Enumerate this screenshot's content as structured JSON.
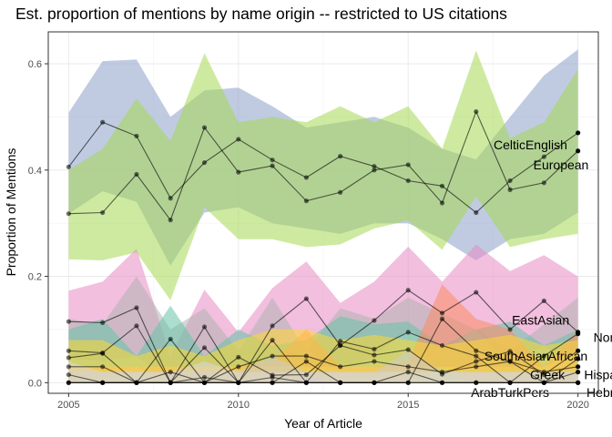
{
  "chart_data": {
    "type": "line",
    "title": "Est. proportion of mentions by name origin -- restricted to US citations",
    "xlabel": "Year of Article",
    "ylabel": "Proportion of Mentions",
    "xlim": [
      2004.4,
      2020.6
    ],
    "ylim": [
      -0.02,
      0.66
    ],
    "x_ticks": [
      2005,
      2010,
      2015,
      2020
    ],
    "y_ticks": [
      0.0,
      0.2,
      0.4,
      0.6
    ],
    "y_tick_labels": [
      "0.0",
      "0.2",
      "0.4",
      "0.6"
    ],
    "grid": true,
    "legend": "none (series labeled directly at right end)",
    "x": [
      2005,
      2006,
      2007,
      2008,
      2009,
      2010,
      2011,
      2012,
      2013,
      2014,
      2015,
      2016,
      2017,
      2018,
      2019,
      2020
    ],
    "series": [
      {
        "name": "CelticEnglish",
        "color": "#7570b3",
        "band_color": "#8da0cb",
        "values": [
          0.406,
          0.49,
          0.464,
          0.347,
          0.414,
          0.458,
          0.419,
          0.386,
          0.426,
          0.407,
          0.38,
          0.37,
          0.32,
          0.38,
          0.425,
          0.47
        ],
        "lower": [
          0.318,
          0.36,
          0.34,
          0.22,
          0.32,
          0.33,
          0.3,
          0.29,
          0.28,
          0.3,
          0.3,
          0.27,
          0.23,
          0.27,
          0.28,
          0.32
        ],
        "upper": [
          0.508,
          0.605,
          0.608,
          0.5,
          0.55,
          0.555,
          0.52,
          0.48,
          0.49,
          0.5,
          0.48,
          0.44,
          0.42,
          0.5,
          0.578,
          0.627
        ],
        "label_x": 2018.6,
        "label_y": 0.448
      },
      {
        "name": "European",
        "color": "#4d8b2a",
        "band_color": "#a6d854",
        "values": [
          0.318,
          0.32,
          0.392,
          0.306,
          0.48,
          0.396,
          0.408,
          0.342,
          0.358,
          0.4,
          0.41,
          0.338,
          0.51,
          0.363,
          0.376,
          0.436
        ],
        "lower": [
          0.232,
          0.23,
          0.245,
          0.155,
          0.33,
          0.27,
          0.27,
          0.255,
          0.26,
          0.29,
          0.305,
          0.25,
          0.35,
          0.255,
          0.27,
          0.28
        ],
        "upper": [
          0.4,
          0.44,
          0.535,
          0.455,
          0.62,
          0.49,
          0.5,
          0.49,
          0.52,
          0.49,
          0.52,
          0.44,
          0.625,
          0.46,
          0.49,
          0.59
        ],
        "label_x": 2019.5,
        "label_y": 0.41
      },
      {
        "name": "EastAsian",
        "color": "#8b3a7a",
        "band_color": "#e78ac3",
        "values": [
          0.115,
          0.113,
          0.141,
          0.0,
          0.105,
          0.0,
          0.107,
          0.158,
          0.07,
          0.117,
          0.174,
          0.131,
          0.17,
          0.1,
          0.154,
          0.095
        ],
        "lower": [
          0.045,
          0.04,
          0.05,
          0.0,
          0.02,
          0.0,
          0.03,
          0.06,
          0.02,
          0.05,
          0.1,
          0.06,
          0.1,
          0.03,
          0.07,
          0.02
        ],
        "upper": [
          0.173,
          0.19,
          0.252,
          0.05,
          0.175,
          0.095,
          0.178,
          0.228,
          0.15,
          0.19,
          0.256,
          0.19,
          0.26,
          0.21,
          0.24,
          0.2
        ],
        "label_x": 2018.9,
        "label_y": 0.118
      },
      {
        "name": "Nordic",
        "color": "#333333",
        "band_color": "#b3b3b3",
        "values": [
          0.06,
          0.056,
          0.107,
          0.0,
          0.066,
          0.0,
          0.08,
          0.0,
          0.078,
          0.063,
          0.095,
          0.07,
          0.05,
          0.0,
          0.05,
          0.092
        ],
        "lower": [
          0.01,
          0.01,
          0.03,
          0.0,
          0.0,
          0.0,
          0.02,
          0.0,
          0.02,
          0.01,
          0.04,
          0.01,
          0.0,
          0.0,
          0.0,
          0.02
        ],
        "upper": [
          0.12,
          0.11,
          0.2,
          0.1,
          0.14,
          0.06,
          0.16,
          0.06,
          0.14,
          0.12,
          0.16,
          0.13,
          0.1,
          0.06,
          0.11,
          0.16
        ],
        "label_x": 2021.0,
        "label_y": 0.085
      },
      {
        "name": "SouthAsian",
        "color": "#1b7a5e",
        "band_color": "#66c2a5",
        "values": [
          0.047,
          0.055,
          0.0,
          0.082,
          0.0,
          0.048,
          0.014,
          0.015,
          0.07,
          0.052,
          0.062,
          0.016,
          0.04,
          0.059,
          0.015,
          0.06
        ],
        "lower": [
          0.0,
          0.01,
          0.0,
          0.02,
          0.0,
          0.0,
          0.0,
          0.0,
          0.01,
          0.01,
          0.01,
          0.0,
          0.0,
          0.01,
          0.0,
          0.01
        ],
        "upper": [
          0.1,
          0.12,
          0.05,
          0.145,
          0.05,
          0.1,
          0.07,
          0.08,
          0.125,
          0.11,
          0.115,
          0.07,
          0.1,
          0.115,
          0.07,
          0.1
        ],
        "label_x": 2018.2,
        "label_y": 0.05
      },
      {
        "name": "African",
        "color": "#c75c2a",
        "band_color": "#fc8d62",
        "values": [
          0.0,
          0.0,
          0.0,
          0.0,
          0.0,
          0.0,
          0.0,
          0.04,
          0.0,
          0.0,
          0.0,
          0.12,
          0.06,
          0.04,
          0.0,
          0.045
        ],
        "lower": [
          0.0,
          0.0,
          0.0,
          0.0,
          0.0,
          0.0,
          0.0,
          0.0,
          0.0,
          0.0,
          0.0,
          0.03,
          0.0,
          0.0,
          0.0,
          0.0
        ],
        "upper": [
          0.03,
          0.03,
          0.03,
          0.03,
          0.03,
          0.03,
          0.04,
          0.1,
          0.03,
          0.03,
          0.04,
          0.185,
          0.12,
          0.1,
          0.03,
          0.1
        ],
        "label_x": 2019.7,
        "label_y": 0.05
      },
      {
        "name": "Greek",
        "color": "#8a6d1e",
        "band_color": "#e5c494",
        "values": [
          0.0,
          0.0,
          0.0,
          0.0,
          0.0,
          0.0,
          0.0,
          0.0,
          0.0,
          0.0,
          0.0,
          0.0,
          0.0,
          0.0,
          0.0,
          0.02
        ],
        "lower": [
          0.0,
          0.0,
          0.0,
          0.0,
          0.0,
          0.0,
          0.0,
          0.0,
          0.0,
          0.0,
          0.0,
          0.0,
          0.0,
          0.0,
          0.0,
          0.0
        ],
        "upper": [
          0.03,
          0.03,
          0.03,
          0.03,
          0.03,
          0.03,
          0.03,
          0.03,
          0.03,
          0.03,
          0.03,
          0.03,
          0.03,
          0.03,
          0.03,
          0.06
        ],
        "label_x": 2019.1,
        "label_y": 0.015
      },
      {
        "name": "Hispanic",
        "color": "#6a6a00",
        "band_color": "#ffd92f",
        "values": [
          0.03,
          0.03,
          0.0,
          0.02,
          0.0,
          0.03,
          0.05,
          0.05,
          0.03,
          0.04,
          0.03,
          0.02,
          0.03,
          0.04,
          0.02,
          0.03
        ],
        "lower": [
          0.0,
          0.0,
          0.0,
          0.0,
          0.0,
          0.0,
          0.0,
          0.01,
          0.0,
          0.0,
          0.0,
          0.0,
          0.0,
          0.0,
          0.0,
          0.0
        ],
        "upper": [
          0.08,
          0.08,
          0.05,
          0.07,
          0.05,
          0.08,
          0.1,
          0.1,
          0.08,
          0.09,
          0.08,
          0.07,
          0.08,
          0.09,
          0.07,
          0.08
        ],
        "label_x": 2020.9,
        "label_y": 0.015
      },
      {
        "name": "ArabTurkPers",
        "color": "#555555",
        "band_color": "#cccccc",
        "values": [
          0.0,
          0.0,
          0.0,
          0.0,
          0.0,
          0.0,
          0.01,
          0.0,
          0.0,
          0.0,
          0.02,
          0.0,
          0.0,
          0.0,
          0.0,
          0.0
        ],
        "lower": [
          0.0,
          0.0,
          0.0,
          0.0,
          0.0,
          0.0,
          0.0,
          0.0,
          0.0,
          0.0,
          0.0,
          0.0,
          0.0,
          0.0,
          0.0,
          0.0
        ],
        "upper": [
          0.02,
          0.02,
          0.02,
          0.02,
          0.02,
          0.02,
          0.05,
          0.02,
          0.02,
          0.02,
          0.06,
          0.02,
          0.02,
          0.02,
          0.02,
          0.02
        ],
        "label_x": 2018.0,
        "label_y": -0.018
      },
      {
        "name": "Hebrew",
        "color": "#444444",
        "band_color": "#d9d9d9",
        "values": [
          0.015,
          0.0,
          0.0,
          0.0,
          0.01,
          0.0,
          0.0,
          0.0,
          0.0,
          0.0,
          0.0,
          0.0,
          0.0,
          0.0,
          0.0,
          0.0
        ],
        "lower": [
          0.0,
          0.0,
          0.0,
          0.0,
          0.0,
          0.0,
          0.0,
          0.0,
          0.0,
          0.0,
          0.0,
          0.0,
          0.0,
          0.0,
          0.0,
          0.0
        ],
        "upper": [
          0.04,
          0.02,
          0.02,
          0.02,
          0.04,
          0.02,
          0.02,
          0.02,
          0.02,
          0.02,
          0.02,
          0.02,
          0.02,
          0.02,
          0.02,
          0.02
        ],
        "label_x": 2020.9,
        "label_y": -0.018
      }
    ]
  }
}
